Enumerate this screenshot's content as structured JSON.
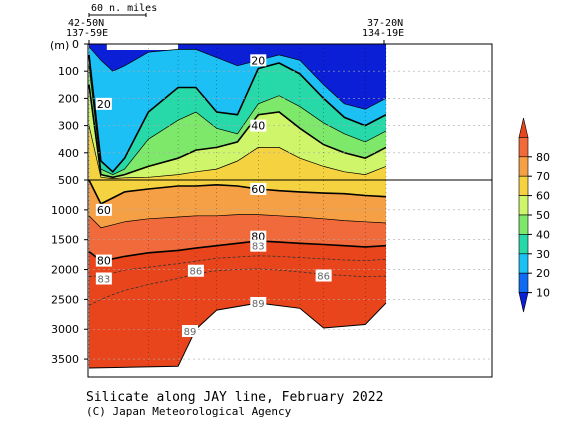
{
  "chart_data": {
    "type": "contour",
    "title": "Silicate along JAY line, February 2022",
    "credit": "(C) Japan Meteorological Agency",
    "ylabel": "(m)",
    "scale_bar_label": "60 n. miles",
    "start_station": {
      "lat": "42-50N",
      "lon": "137-59E"
    },
    "end_station": {
      "lat": "37-20N",
      "lon": "134-19E"
    },
    "upper_ticks": [
      0,
      100,
      200,
      300,
      400,
      500
    ],
    "lower_ticks": [
      1000,
      1500,
      2000,
      2500,
      3000,
      3500
    ],
    "colorbar": {
      "levels": [
        10,
        20,
        30,
        40,
        50,
        60,
        70,
        80
      ],
      "colors": [
        "#0a1fd6",
        "#0f6cf2",
        "#1cc0f5",
        "#27d9a8",
        "#7ee86a",
        "#cff56a",
        "#f5d23f",
        "#f5a044",
        "#f06a3c",
        "#e8451c"
      ]
    },
    "contour_labels": [
      {
        "text": "20",
        "x": 0.05,
        "depth": 220
      },
      {
        "text": "20",
        "x": 0.57,
        "depth": 60
      },
      {
        "text": "40",
        "x": 0.57,
        "depth": 300
      },
      {
        "text": "60",
        "x": 0.05,
        "depth": 1000
      },
      {
        "text": "60",
        "x": 0.57,
        "depth": 650
      },
      {
        "text": "80",
        "x": 0.05,
        "depth": 1850
      },
      {
        "text": "80",
        "x": 0.57,
        "depth": 1450
      },
      {
        "text": "83",
        "x": 0.05,
        "depth": 2150
      },
      {
        "text": "83",
        "x": 0.57,
        "depth": 1600
      },
      {
        "text": "86",
        "x": 0.36,
        "depth": 2020
      },
      {
        "text": "86",
        "x": 0.79,
        "depth": 2100
      },
      {
        "text": "89",
        "x": 0.57,
        "depth": 2560
      },
      {
        "text": "89",
        "x": 0.34,
        "depth": 3030
      }
    ],
    "stations_x": [
      0.0,
      0.2,
      0.3,
      0.36,
      0.43,
      0.57,
      0.71,
      0.79,
      0.93,
      1.0
    ],
    "bottom_profile": [
      {
        "x": 0.0,
        "depth": 3650
      },
      {
        "x": 0.3,
        "depth": 3620
      },
      {
        "x": 0.36,
        "depth": 3000
      },
      {
        "x": 0.43,
        "depth": 2680
      },
      {
        "x": 0.57,
        "depth": 2560
      },
      {
        "x": 0.71,
        "depth": 2650
      },
      {
        "x": 0.79,
        "depth": 2980
      },
      {
        "x": 0.93,
        "depth": 2920
      },
      {
        "x": 1.0,
        "depth": 2560
      }
    ]
  }
}
